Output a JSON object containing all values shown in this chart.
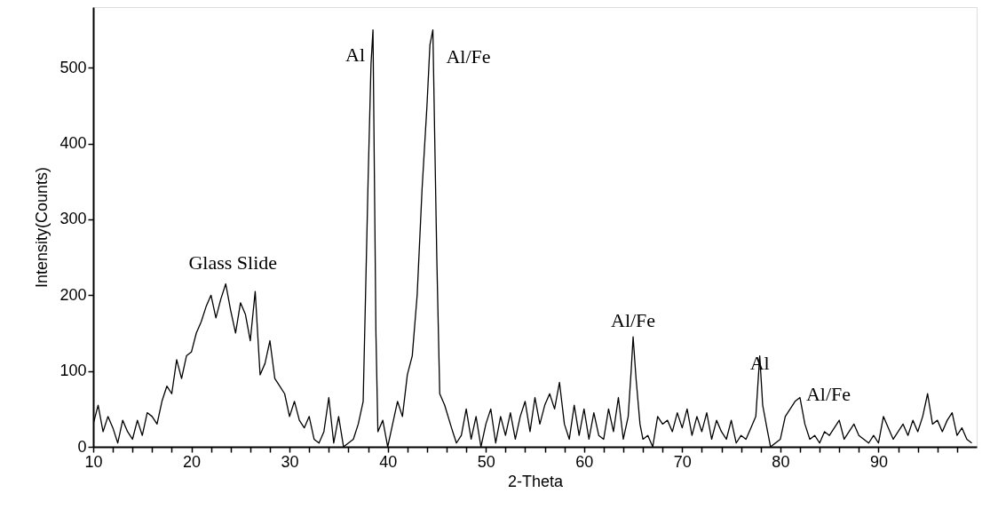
{
  "chart_data": {
    "type": "line",
    "xlabel": "2-Theta",
    "ylabel": "Intensity(Counts)",
    "xlim": [
      10,
      100
    ],
    "ylim": [
      0,
      580
    ],
    "xticks": [
      10,
      {
        "value": 12,
        "label": null
      },
      {
        "value": 14,
        "label": null
      },
      {
        "value": 16,
        "label": null
      },
      {
        "value": 18,
        "label": null
      },
      20,
      {
        "value": 22,
        "label": null
      },
      {
        "value": 24,
        "label": null
      },
      {
        "value": 26,
        "label": null
      },
      {
        "value": 28,
        "label": null
      },
      30,
      {
        "value": 32,
        "label": null
      },
      {
        "value": 34,
        "label": null
      },
      {
        "value": 36,
        "label": null
      },
      {
        "value": 38,
        "label": null
      },
      40,
      {
        "value": 42,
        "label": null
      },
      {
        "value": 44,
        "label": null
      },
      {
        "value": 46,
        "label": null
      },
      {
        "value": 48,
        "label": null
      },
      50,
      {
        "value": 52,
        "label": null
      },
      {
        "value": 54,
        "label": null
      },
      {
        "value": 56,
        "label": null
      },
      {
        "value": 58,
        "label": null
      },
      60,
      {
        "value": 62,
        "label": null
      },
      {
        "value": 64,
        "label": null
      },
      {
        "value": 66,
        "label": null
      },
      {
        "value": 68,
        "label": null
      },
      70,
      {
        "value": 72,
        "label": null
      },
      {
        "value": 74,
        "label": null
      },
      {
        "value": 76,
        "label": null
      },
      {
        "value": 78,
        "label": null
      },
      80,
      {
        "value": 82,
        "label": null
      },
      {
        "value": 84,
        "label": null
      },
      {
        "value": 86,
        "label": null
      },
      {
        "value": 88,
        "label": null
      },
      90,
      {
        "value": 92,
        "label": null
      },
      {
        "value": 94,
        "label": null
      },
      {
        "value": 96,
        "label": null
      },
      {
        "value": 98,
        "label": null
      }
    ],
    "yticks": [
      0,
      100,
      200,
      300,
      400,
      500
    ],
    "grid": false,
    "marker": "none",
    "line_style": "solid",
    "annotations": [
      {
        "text": "Al",
        "x": 38.5,
        "y": 550
      },
      {
        "text": "Al/Fe",
        "x": 44.6,
        "y": 550
      },
      {
        "text": "Glass Slide",
        "x": 23.5,
        "y": 215
      },
      {
        "text": "Al/Fe",
        "x": 65,
        "y": 145
      },
      {
        "text": "Al",
        "x": 77.9,
        "y": 120
      },
      {
        "text": "Al/Fe",
        "x": 82,
        "y": 65
      }
    ],
    "series": [
      {
        "color": "#000000",
        "x": [
          10,
          10.5,
          11,
          11.5,
          12,
          12.5,
          13,
          13.5,
          14,
          14.5,
          15,
          15.5,
          16,
          16.5,
          17,
          17.5,
          18,
          18.5,
          19,
          19.5,
          20,
          20.5,
          21,
          21.5,
          22,
          22.5,
          23,
          23.5,
          24,
          24.5,
          25,
          25.5,
          26,
          26.5,
          27,
          27.5,
          28,
          28.5,
          29,
          29.5,
          30,
          30.5,
          31,
          31.5,
          32,
          32.5,
          33,
          33.5,
          34,
          34.5,
          35,
          35.5,
          36,
          36.5,
          37,
          37.5,
          38,
          38.3,
          38.5,
          38.8,
          39,
          39.5,
          40,
          40.5,
          41,
          41.5,
          42,
          42.5,
          43,
          43.5,
          44,
          44.3,
          44.6,
          45,
          45.3,
          45.8,
          46.5,
          47,
          47.5,
          48,
          48.5,
          49,
          49.5,
          50,
          50.5,
          51,
          51.5,
          52,
          52.5,
          53,
          53.5,
          54,
          54.5,
          55,
          55.5,
          56,
          56.5,
          57,
          57.5,
          58,
          58.5,
          59,
          59.5,
          60,
          60.5,
          61,
          61.5,
          62,
          62.5,
          63,
          63.5,
          64,
          64.5,
          64.8,
          65,
          65.3,
          65.7,
          66,
          66.5,
          67,
          67.5,
          68,
          68.5,
          69,
          69.5,
          70,
          70.5,
          71,
          71.5,
          72,
          72.5,
          73,
          73.5,
          74,
          74.5,
          75,
          75.5,
          76,
          76.5,
          77,
          77.5,
          77.9,
          78.2,
          78.7,
          79,
          80,
          80.5,
          81,
          81.5,
          82,
          82.5,
          83,
          83.5,
          84,
          84.5,
          85,
          85.5,
          86,
          86.5,
          87,
          87.5,
          88,
          88.5,
          89,
          89.5,
          90,
          90.5,
          91,
          91.5,
          92,
          92.5,
          93,
          93.5,
          94,
          94.5,
          95,
          95.5,
          96,
          96.5,
          97,
          97.5,
          98,
          98.5,
          99,
          99.5
        ],
        "values": [
          30,
          55,
          20,
          40,
          25,
          5,
          35,
          20,
          10,
          35,
          15,
          45,
          40,
          30,
          60,
          80,
          70,
          115,
          90,
          120,
          125,
          150,
          165,
          185,
          200,
          170,
          195,
          215,
          180,
          150,
          190,
          175,
          140,
          205,
          95,
          110,
          140,
          90,
          80,
          70,
          40,
          60,
          35,
          25,
          40,
          10,
          5,
          20,
          65,
          5,
          40,
          0,
          5,
          10,
          30,
          60,
          350,
          505,
          550,
          150,
          20,
          35,
          0,
          30,
          60,
          40,
          95,
          120,
          200,
          340,
          450,
          530,
          550,
          250,
          70,
          55,
          25,
          5,
          15,
          50,
          10,
          40,
          0,
          30,
          50,
          5,
          40,
          15,
          45,
          10,
          40,
          60,
          20,
          65,
          30,
          55,
          70,
          50,
          85,
          30,
          10,
          55,
          15,
          50,
          10,
          45,
          15,
          10,
          50,
          20,
          65,
          10,
          40,
          100,
          145,
          90,
          30,
          10,
          15,
          0,
          40,
          30,
          35,
          20,
          45,
          25,
          50,
          15,
          40,
          20,
          45,
          10,
          35,
          20,
          10,
          35,
          5,
          15,
          10,
          25,
          40,
          120,
          55,
          20,
          0,
          10,
          40,
          50,
          60,
          65,
          30,
          10,
          15,
          5,
          20,
          15,
          25,
          35,
          10,
          20,
          30,
          15,
          10,
          5,
          15,
          5,
          40,
          25,
          10,
          20,
          30,
          15,
          35,
          20,
          40,
          70,
          30,
          35,
          20,
          35,
          45,
          15,
          25,
          10,
          5
        ]
      }
    ]
  }
}
